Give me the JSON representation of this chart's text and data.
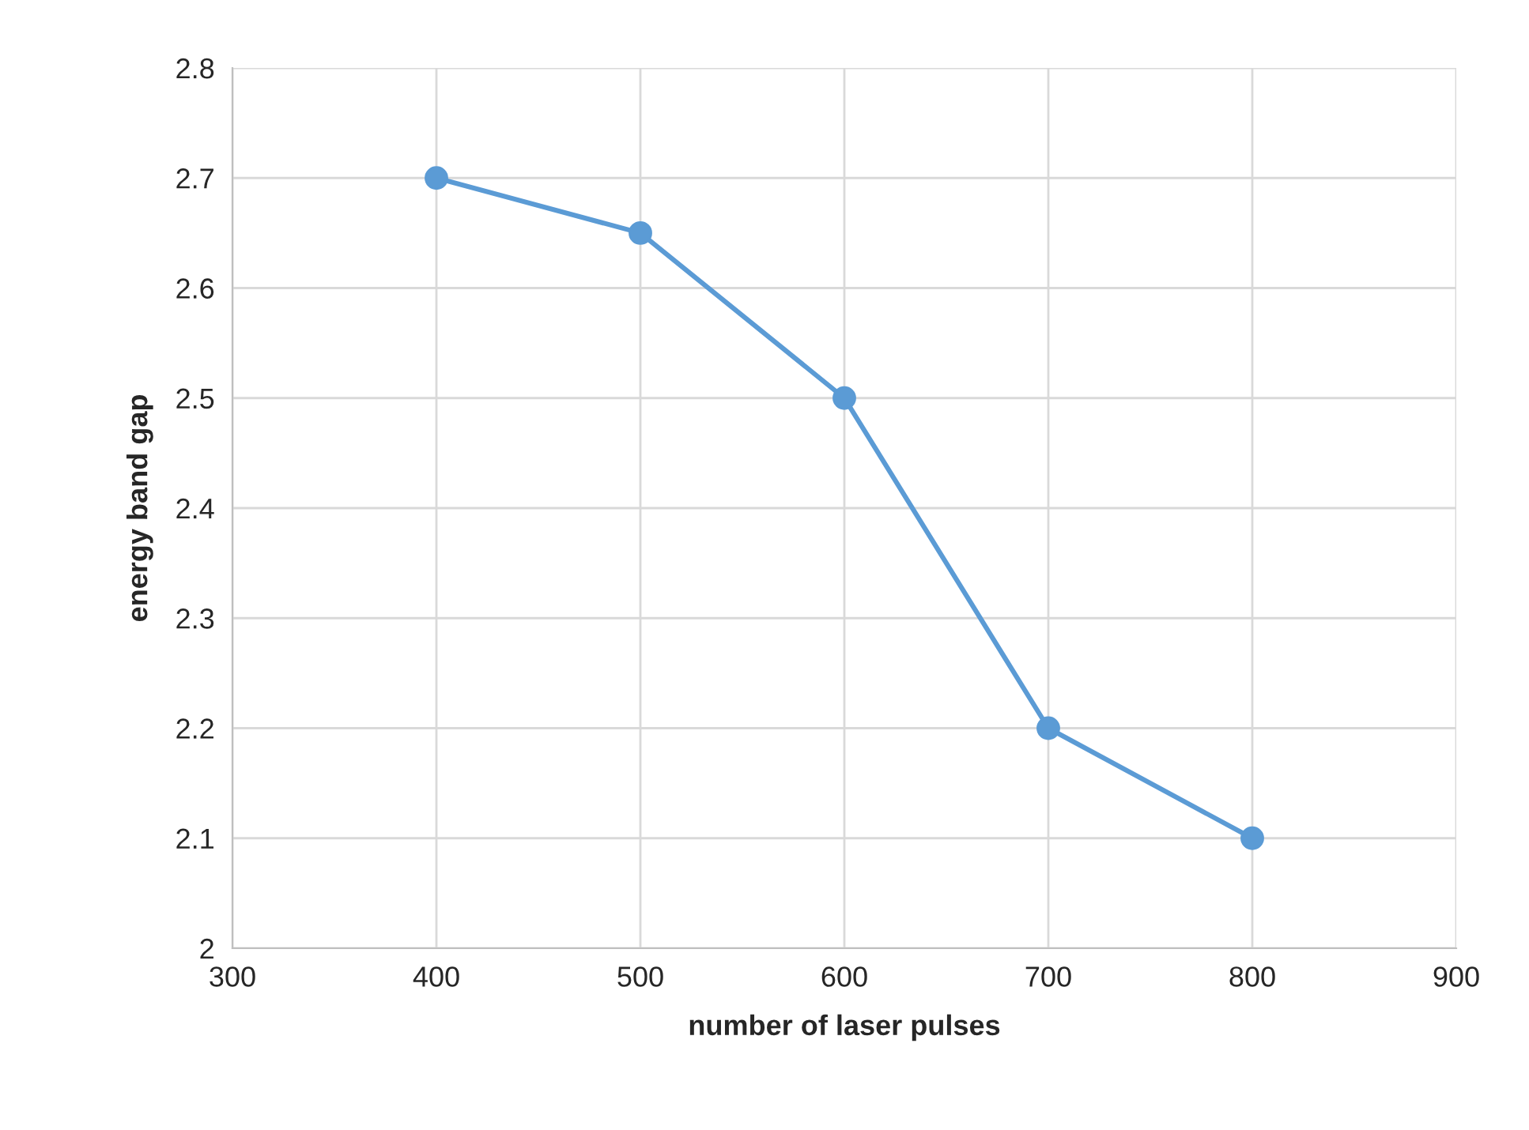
{
  "chart_data": {
    "type": "line",
    "xlabel": "number of laser pulses",
    "ylabel": "energy band gap",
    "x": [
      400,
      500,
      600,
      700,
      800
    ],
    "series": [
      {
        "color": "#5b9bd5",
        "values": [
          2.7,
          2.65,
          2.5,
          2.2,
          2.1
        ]
      }
    ],
    "xlim": [
      300,
      900
    ],
    "xticks": [
      300,
      400,
      500,
      600,
      700,
      800,
      900
    ],
    "ylim": [
      2,
      2.8
    ],
    "yticks": [
      2,
      2.1,
      2.2,
      2.3,
      2.4,
      2.5,
      2.6,
      2.7,
      2.8
    ],
    "grid": true,
    "marker": "circle",
    "line_style": "solid"
  }
}
